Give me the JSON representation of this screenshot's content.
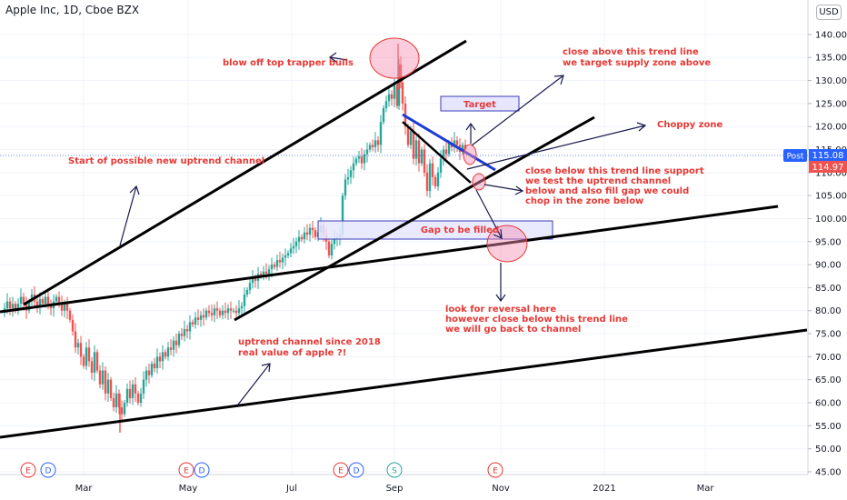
{
  "header": {
    "title": "Apple Inc, 1D, Cboe BZX",
    "currency": "USD"
  },
  "price_badges": {
    "post_label": "Post",
    "post_value": "115.08",
    "last_value": "114.97"
  },
  "colors": {
    "up": "#26a69a",
    "down": "#ef5350",
    "annotation": "#e53935",
    "arrow": "#1a1a4e",
    "zone_fill": "#e6e6ff",
    "zone_stroke": "#3b3bb8",
    "trend_blue": "#1e3ad6"
  },
  "chart_data": {
    "type": "candlestick",
    "title": "Apple Inc, 1D, Cboe BZX",
    "x_ticks": [
      "Mar",
      "May",
      "Jul",
      "Sep",
      "Nov",
      "2021",
      "Mar"
    ],
    "y_ticks": [
      45,
      50,
      55,
      60,
      65,
      70,
      75,
      80,
      85,
      90,
      95,
      100,
      105,
      110,
      115,
      120,
      125,
      130,
      135,
      140
    ],
    "ylim": [
      44,
      146
    ],
    "price_series": [
      [
        0,
        79.5
      ],
      [
        4,
        80.5
      ],
      [
        7,
        82
      ],
      [
        10,
        80.5
      ],
      [
        13,
        81.5
      ],
      [
        16,
        80
      ],
      [
        19,
        81.5
      ],
      [
        22,
        83
      ],
      [
        25,
        81.5
      ],
      [
        28,
        80
      ],
      [
        31,
        82
      ],
      [
        34,
        83.5
      ],
      [
        37,
        82
      ],
      [
        40,
        81
      ],
      [
        43,
        82.5
      ],
      [
        46,
        81.5
      ],
      [
        49,
        83
      ],
      [
        52,
        81.5
      ],
      [
        55,
        80.5
      ],
      [
        58,
        82
      ],
      [
        61,
        83
      ],
      [
        64,
        81.5
      ],
      [
        67,
        80
      ],
      [
        70,
        81.5
      ],
      [
        73,
        80
      ],
      [
        76,
        78
      ],
      [
        79,
        75.5
      ],
      [
        82,
        72
      ],
      [
        85,
        73
      ],
      [
        88,
        70
      ],
      [
        91,
        68
      ],
      [
        94,
        72
      ],
      [
        97,
        69
      ],
      [
        100,
        66.5
      ],
      [
        103,
        71
      ],
      [
        106,
        67
      ],
      [
        109,
        64
      ],
      [
        112,
        67
      ],
      [
        115,
        62
      ],
      [
        118,
        65
      ],
      [
        121,
        61
      ],
      [
        124,
        59
      ],
      [
        127,
        62
      ],
      [
        130,
        59
      ],
      [
        133,
        57.5
      ],
      [
        136,
        60
      ],
      [
        139,
        63
      ],
      [
        142,
        61
      ],
      [
        145,
        64
      ],
      [
        148,
        62
      ],
      [
        151,
        60
      ],
      [
        154,
        62
      ],
      [
        157,
        65
      ],
      [
        160,
        67
      ],
      [
        163,
        66
      ],
      [
        166,
        68.5
      ],
      [
        169,
        67.5
      ],
      [
        172,
        70
      ],
      [
        175,
        69
      ],
      [
        178,
        71
      ],
      [
        181,
        70
      ],
      [
        184,
        72
      ],
      [
        187,
        71.5
      ],
      [
        190,
        73.5
      ],
      [
        193,
        72.5
      ],
      [
        196,
        75
      ],
      [
        199,
        74.5
      ],
      [
        202,
        76
      ],
      [
        205,
        75.5
      ],
      [
        208,
        77.5
      ],
      [
        211,
        77
      ],
      [
        214,
        78.5
      ],
      [
        217,
        78
      ],
      [
        220,
        79
      ],
      [
        223,
        78.5
      ],
      [
        226,
        80
      ],
      [
        229,
        79.5
      ],
      [
        232,
        79
      ],
      [
        235,
        80.5
      ],
      [
        238,
        80
      ],
      [
        241,
        79
      ],
      [
        244,
        80
      ],
      [
        247,
        79.5
      ],
      [
        250,
        80.5
      ],
      [
        253,
        80
      ],
      [
        256,
        80
      ],
      [
        259,
        79.5
      ],
      [
        262,
        80.5
      ],
      [
        265,
        81
      ],
      [
        268,
        83.5
      ],
      [
        271,
        84.5
      ],
      [
        274,
        86
      ],
      [
        277,
        87
      ],
      [
        280,
        86.5
      ],
      [
        283,
        88
      ],
      [
        286,
        87.5
      ],
      [
        289,
        88.5
      ],
      [
        292,
        88
      ],
      [
        295,
        89
      ],
      [
        298,
        90
      ],
      [
        301,
        89.5
      ],
      [
        304,
        91
      ],
      [
        307,
        90.5
      ],
      [
        310,
        91.5
      ],
      [
        313,
        92
      ],
      [
        316,
        92.5
      ],
      [
        319,
        93.5
      ],
      [
        322,
        94
      ],
      [
        325,
        95
      ],
      [
        328,
        96
      ],
      [
        331,
        95.5
      ],
      [
        334,
        97
      ],
      [
        337,
        96.5
      ],
      [
        340,
        98
      ],
      [
        343,
        97.5
      ],
      [
        346,
        96
      ],
      [
        349,
        97
      ],
      [
        352,
        98.5
      ],
      [
        355,
        96.5
      ],
      [
        358,
        95
      ],
      [
        361,
        92
      ],
      [
        364,
        94.5
      ],
      [
        367,
        95.5
      ],
      [
        370,
        96
      ],
      [
        373,
        96.5
      ],
      [
        376,
        105
      ],
      [
        379,
        108.5
      ],
      [
        382,
        109
      ],
      [
        385,
        110.5
      ],
      [
        388,
        112
      ],
      [
        391,
        113
      ],
      [
        394,
        113.5
      ],
      [
        397,
        112
      ],
      [
        400,
        114
      ],
      [
        403,
        115
      ],
      [
        406,
        116
      ],
      [
        409,
        115.5
      ],
      [
        412,
        117
      ],
      [
        415,
        116
      ],
      [
        418,
        121
      ],
      [
        421,
        124
      ],
      [
        424,
        125.5
      ],
      [
        427,
        127
      ],
      [
        430,
        126
      ],
      [
        433,
        129
      ],
      [
        436,
        124.5
      ],
      [
        438,
        133.5
      ],
      [
        440,
        129.5
      ],
      [
        442,
        125
      ],
      [
        445,
        120
      ],
      [
        448,
        116
      ],
      [
        451,
        119
      ],
      [
        454,
        113
      ],
      [
        457,
        117
      ],
      [
        460,
        112
      ],
      [
        463,
        115
      ],
      [
        466,
        110
      ],
      [
        469,
        106
      ],
      [
        472,
        112
      ],
      [
        475,
        109
      ],
      [
        478,
        107
      ],
      [
        481,
        110
      ],
      [
        484,
        113
      ],
      [
        487,
        115
      ],
      [
        490,
        114
      ],
      [
        493,
        116.5
      ],
      [
        496,
        115.5
      ],
      [
        499,
        117
      ],
      [
        502,
        116
      ],
      [
        505,
        114.5
      ],
      [
        508,
        116
      ],
      [
        511,
        115
      ]
    ],
    "annotations": [
      "blow off top trapper bulls",
      "close above this trend line",
      "we target supply zone above",
      "Target",
      "Choppy zone",
      "Start of possible new uptrend channel",
      "close below this trend line support",
      "we test the uptrend channel",
      "below and also fill gap we could",
      "chop in the zone below",
      "Gap to be filled",
      "look for reversal here",
      "however close below this trend line",
      "we will go back to channel",
      "uptrend channel since 2018",
      "real value of apple ?!"
    ],
    "event_markers": [
      "E",
      "D",
      "E",
      "D",
      "E",
      "D",
      "S",
      "E"
    ]
  }
}
